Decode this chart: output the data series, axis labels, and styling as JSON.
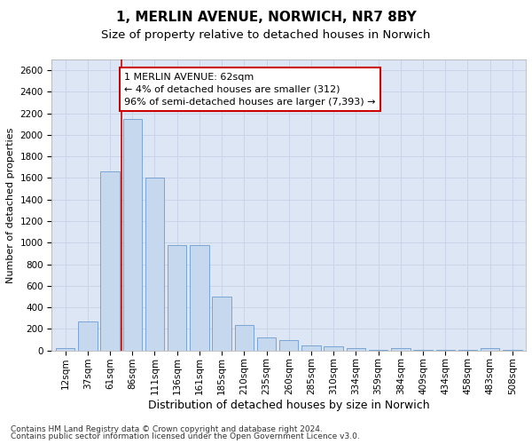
{
  "title1": "1, MERLIN AVENUE, NORWICH, NR7 8BY",
  "title2": "Size of property relative to detached houses in Norwich",
  "xlabel": "Distribution of detached houses by size in Norwich",
  "ylabel": "Number of detached properties",
  "categories": [
    "12sqm",
    "37sqm",
    "61sqm",
    "86sqm",
    "111sqm",
    "136sqm",
    "161sqm",
    "185sqm",
    "210sqm",
    "235sqm",
    "260sqm",
    "285sqm",
    "310sqm",
    "334sqm",
    "359sqm",
    "384sqm",
    "409sqm",
    "434sqm",
    "458sqm",
    "483sqm",
    "508sqm"
  ],
  "values": [
    20,
    270,
    1660,
    2150,
    1600,
    975,
    975,
    500,
    240,
    120,
    95,
    50,
    35,
    20,
    10,
    20,
    5,
    5,
    5,
    20,
    5
  ],
  "bar_color": "#c5d8ed",
  "bar_edge_color": "#5b8ec8",
  "annotation_text_line1": "1 MERLIN AVENUE: 62sqm",
  "annotation_text_line2": "← 4% of detached houses are smaller (312)",
  "annotation_text_line3": "96% of semi-detached houses are larger (7,393) →",
  "annotation_box_color": "#ffffff",
  "annotation_box_edge": "#cc0000",
  "vline_color": "#cc0000",
  "vline_x": 2.5,
  "ylim": [
    0,
    2700
  ],
  "yticks": [
    0,
    200,
    400,
    600,
    800,
    1000,
    1200,
    1400,
    1600,
    1800,
    2000,
    2200,
    2400,
    2600
  ],
  "grid_color": "#c8d4e8",
  "background_color": "#dce6f5",
  "footer_line1": "Contains HM Land Registry data © Crown copyright and database right 2024.",
  "footer_line2": "Contains public sector information licensed under the Open Government Licence v3.0.",
  "title1_fontsize": 11,
  "title2_fontsize": 9.5,
  "xlabel_fontsize": 9,
  "ylabel_fontsize": 8,
  "tick_fontsize": 7.5,
  "annotation_fontsize": 8,
  "footer_fontsize": 6.5
}
